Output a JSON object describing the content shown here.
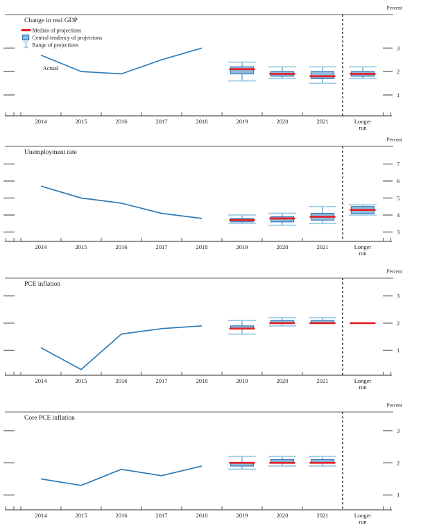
{
  "figure": {
    "unit_label": "Percent",
    "x_years": [
      "2014",
      "2015",
      "2016",
      "2017",
      "2018",
      "2019",
      "2020",
      "2021"
    ],
    "longer_run_label_line1": "Longer",
    "longer_run_label_line2": "run",
    "actual_label": "Actual"
  },
  "legend": {
    "items": [
      {
        "swatch": "median-swatch",
        "label": "Median of projections"
      },
      {
        "swatch": "central-tendency-swatch",
        "label": "Central tendency of projections"
      },
      {
        "swatch": "range-swatch",
        "label": "Range of projections"
      }
    ]
  },
  "colors": {
    "actual_line": "#2e7cb8",
    "median": "#e22128",
    "central_tendency_fill": "#8fbcdd",
    "central_tendency_border": "#3579b6",
    "range_cap": "#9fcbe6",
    "range_stem": "#68a8d4",
    "axis": "#555555",
    "panel_top_border": "#a3a3a3",
    "tick_dash": "#7a7a7a",
    "text": "#1c1c1c",
    "separator": "#4a4a4a"
  },
  "chart_data": [
    {
      "type": "line",
      "title": "Change in real GDP",
      "ylabel": "Percent",
      "yticks": [
        1,
        2,
        3
      ],
      "ylim": [
        0.11,
        4.43
      ],
      "has_legend": true,
      "actual": {
        "label": "Actual",
        "x": [
          2014,
          2015,
          2016,
          2017,
          2018
        ],
        "values": [
          2.7,
          2.0,
          1.9,
          2.5,
          3.0
        ]
      },
      "projections": [
        {
          "x": "2019",
          "median": 2.1,
          "central_tendency": [
            1.9,
            2.2
          ],
          "range": [
            1.6,
            2.4
          ]
        },
        {
          "x": "2020",
          "median": 1.9,
          "central_tendency": [
            1.8,
            2.0
          ],
          "range": [
            1.7,
            2.2
          ]
        },
        {
          "x": "2021",
          "median": 1.8,
          "central_tendency": [
            1.7,
            2.0
          ],
          "range": [
            1.5,
            2.2
          ]
        },
        {
          "x": "Longer run",
          "median": 1.9,
          "central_tendency": [
            1.8,
            2.0
          ],
          "range": [
            1.7,
            2.2
          ]
        }
      ]
    },
    {
      "type": "line",
      "title": "Unemployment rate",
      "ylabel": "Percent",
      "yticks": [
        3,
        4,
        5,
        6,
        7
      ],
      "ylim": [
        2.45,
        8.04
      ],
      "has_legend": false,
      "actual": {
        "x": [
          2014,
          2015,
          2016,
          2017,
          2018
        ],
        "values": [
          5.7,
          5.0,
          4.7,
          4.1,
          3.8
        ]
      },
      "projections": [
        {
          "x": "2019",
          "median": 3.7,
          "central_tendency": [
            3.6,
            3.8
          ],
          "range": [
            3.5,
            4.0
          ]
        },
        {
          "x": "2020",
          "median": 3.8,
          "central_tendency": [
            3.6,
            3.9
          ],
          "range": [
            3.4,
            4.1
          ]
        },
        {
          "x": "2021",
          "median": 3.9,
          "central_tendency": [
            3.7,
            4.1
          ],
          "range": [
            3.5,
            4.5
          ]
        },
        {
          "x": "Longer run",
          "median": 4.3,
          "central_tendency": [
            4.1,
            4.5
          ],
          "range": [
            4.0,
            4.6
          ]
        }
      ]
    },
    {
      "type": "line",
      "title": "PCE inflation",
      "ylabel": "Percent",
      "yticks": [
        1,
        2,
        3
      ],
      "ylim": [
        0.09,
        3.65
      ],
      "has_legend": false,
      "actual": {
        "x": [
          2014,
          2015,
          2016,
          2017,
          2018
        ],
        "values": [
          1.1,
          0.3,
          1.6,
          1.8,
          1.9
        ]
      },
      "projections": [
        {
          "x": "2019",
          "median": 1.8,
          "central_tendency": [
            1.8,
            1.9
          ],
          "range": [
            1.6,
            2.1
          ]
        },
        {
          "x": "2020",
          "median": 2.0,
          "central_tendency": [
            2.0,
            2.1
          ],
          "range": [
            1.9,
            2.2
          ]
        },
        {
          "x": "2021",
          "median": 2.0,
          "central_tendency": [
            2.0,
            2.1
          ],
          "range": [
            2.0,
            2.2
          ]
        },
        {
          "x": "Longer run",
          "median": 2.0
        }
      ]
    },
    {
      "type": "line",
      "title": "Core PCE inflation",
      "ylabel": "Percent",
      "yticks": [
        1,
        2,
        3
      ],
      "ylim": [
        0.54,
        3.58
      ],
      "has_legend": false,
      "actual": {
        "x": [
          2014,
          2015,
          2016,
          2017,
          2018
        ],
        "values": [
          1.5,
          1.3,
          1.8,
          1.6,
          1.9
        ]
      },
      "projections": [
        {
          "x": "2019",
          "median": 2.0,
          "central_tendency": [
            1.9,
            2.0
          ],
          "range": [
            1.8,
            2.2
          ]
        },
        {
          "x": "2020",
          "median": 2.0,
          "central_tendency": [
            2.0,
            2.1
          ],
          "range": [
            1.9,
            2.2
          ]
        },
        {
          "x": "2021",
          "median": 2.0,
          "central_tendency": [
            2.0,
            2.1
          ],
          "range": [
            1.9,
            2.2
          ]
        }
      ]
    }
  ]
}
